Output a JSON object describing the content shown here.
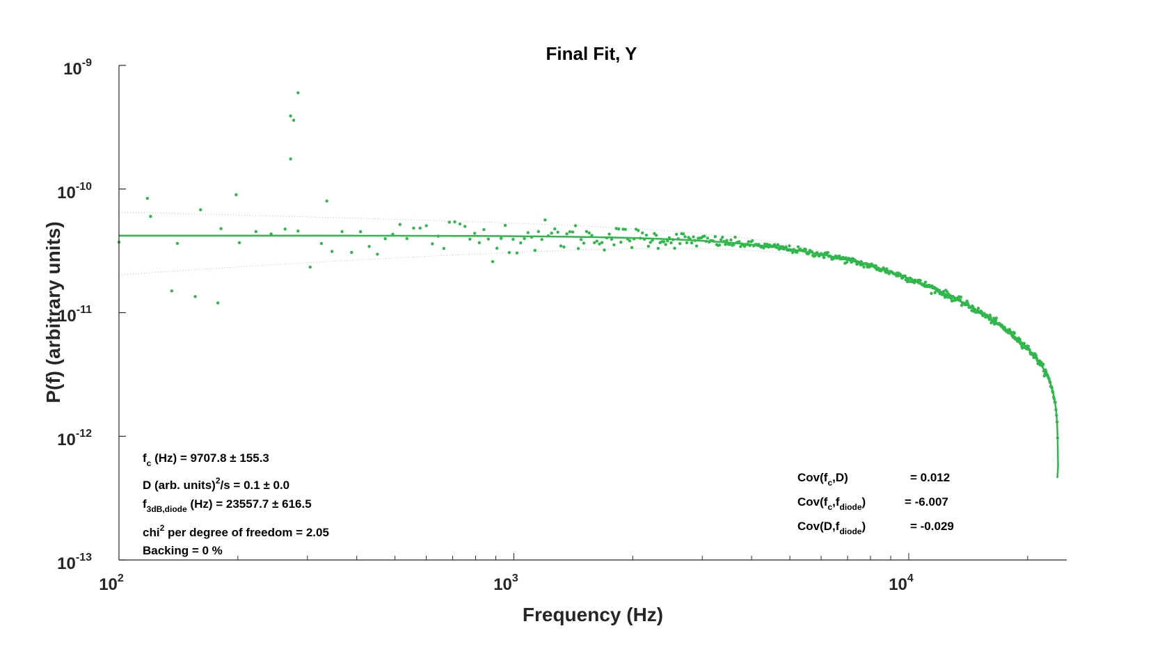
{
  "colors": {
    "series": "#2eb84a",
    "axis": "#262626",
    "background": "#ffffff"
  },
  "chart_data": {
    "type": "scatter",
    "title": "Final Fit, Y",
    "xlabel": "Frequency (Hz)",
    "ylabel": "P(f) (arbitrary units)",
    "xscale": "log",
    "yscale": "log",
    "xlim": [
      100,
      25000
    ],
    "ylim": [
      1e-13,
      1e-09
    ],
    "grid": false,
    "x_ticks": [
      {
        "base": "10",
        "exp": "2",
        "value": 100
      },
      {
        "base": "10",
        "exp": "3",
        "value": 1000
      },
      {
        "base": "10",
        "exp": "4",
        "value": 10000
      }
    ],
    "y_ticks": [
      {
        "base": "10",
        "exp": "-13",
        "value": 1e-13
      },
      {
        "base": "10",
        "exp": "-12",
        "value": 1e-12
      },
      {
        "base": "10",
        "exp": "-11",
        "value": 1e-11
      },
      {
        "base": "10",
        "exp": "-10",
        "value": 1e-10
      },
      {
        "base": "10",
        "exp": "-9",
        "value": 1e-09
      }
    ],
    "fit_model": {
      "D_scale": 4.2e-11,
      "fc_hz": 9707.8,
      "f3db_diode_hz": 23557.7,
      "f_end_hz": 23900
    },
    "outliers": [
      {
        "x": 272,
        "y": 3.9e-10
      },
      {
        "x": 277,
        "y": 3.6e-10
      },
      {
        "x": 284,
        "y": 6e-10
      },
      {
        "x": 272,
        "y": 1.75e-10
      },
      {
        "x": 198,
        "y": 9e-11
      },
      {
        "x": 336,
        "y": 8e-11
      },
      {
        "x": 118,
        "y": 8.4e-11
      },
      {
        "x": 178,
        "y": 1.2e-11
      },
      {
        "x": 136,
        "y": 1.5e-11
      },
      {
        "x": 156,
        "y": 1.35e-11
      }
    ],
    "annotations_left": {
      "fc": {
        "main": "f",
        "sub": "c",
        "rest": " (Hz) = 9707.8 ± 155.3"
      },
      "D": {
        "pre": "D (arb. units)",
        "sup": "2",
        "rest": "/s = 0.1 ± 0.0"
      },
      "f3db": {
        "main": "f",
        "sub": "3dB,diode",
        "rest": " (Hz) = 23557.7 ± 616.5"
      },
      "chi": {
        "pre": "chi",
        "sup": "2",
        "rest": " per degree of freedom = 2.05"
      },
      "backing": "Backing  = 0 %"
    },
    "annotations_right": {
      "cov1": {
        "a": "Cov(f",
        "sub1": "c",
        "b": ",D)",
        "value": "= 0.012"
      },
      "cov2": {
        "a": "Cov(f",
        "sub1": "c",
        "b": ",f",
        "sub2": "diode",
        "c": ")",
        "value": "= -6.007"
      },
      "cov3": {
        "a": "Cov(D,f",
        "sub1": "diode",
        "b": ")",
        "value": "= -0.029"
      }
    }
  }
}
